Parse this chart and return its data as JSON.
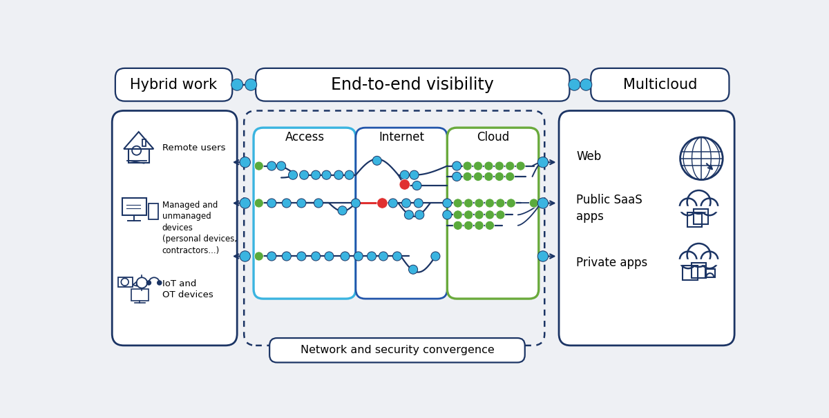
{
  "bg_color": "#eef0f4",
  "title_top_left": "Hybrid work",
  "title_top_center": "End-to-end visibility",
  "title_top_right": "Multicloud",
  "center_label": "Network and security convergence",
  "dark_blue": "#1b3464",
  "cyan": "#3ab4e0",
  "green": "#5aaa3c",
  "red": "#e03030",
  "access_border": "#3ab4e0",
  "cloud_border": "#6aaa3c",
  "internet_border": "#2255aa"
}
